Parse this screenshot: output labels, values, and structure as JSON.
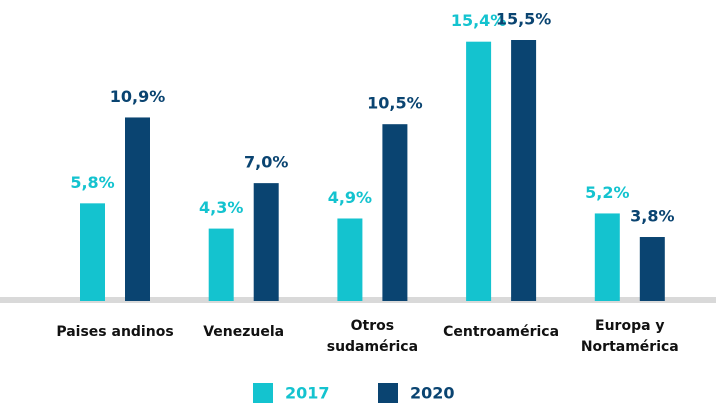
{
  "chart_data": {
    "type": "bar",
    "categories": [
      "Paises andinos",
      "Venezuela",
      "Otros\nsudamérica",
      "Centroamérica",
      "Europa y\nNortamérica"
    ],
    "series": [
      {
        "name": "2017",
        "color": "#14c3cf",
        "values": [
          5.8,
          4.3,
          4.9,
          15.4,
          5.2
        ],
        "value_labels": [
          "5,8%",
          "4,3%",
          "4,9%",
          "15,4%",
          "5,2%"
        ]
      },
      {
        "name": "2020",
        "color": "#0a4471",
        "values": [
          10.9,
          7.0,
          10.5,
          15.5,
          3.8
        ],
        "value_labels": [
          "10,9%",
          "7,0%",
          "10,5%",
          "15,5%",
          "3,8%"
        ]
      }
    ],
    "legend": "bottom"
  }
}
